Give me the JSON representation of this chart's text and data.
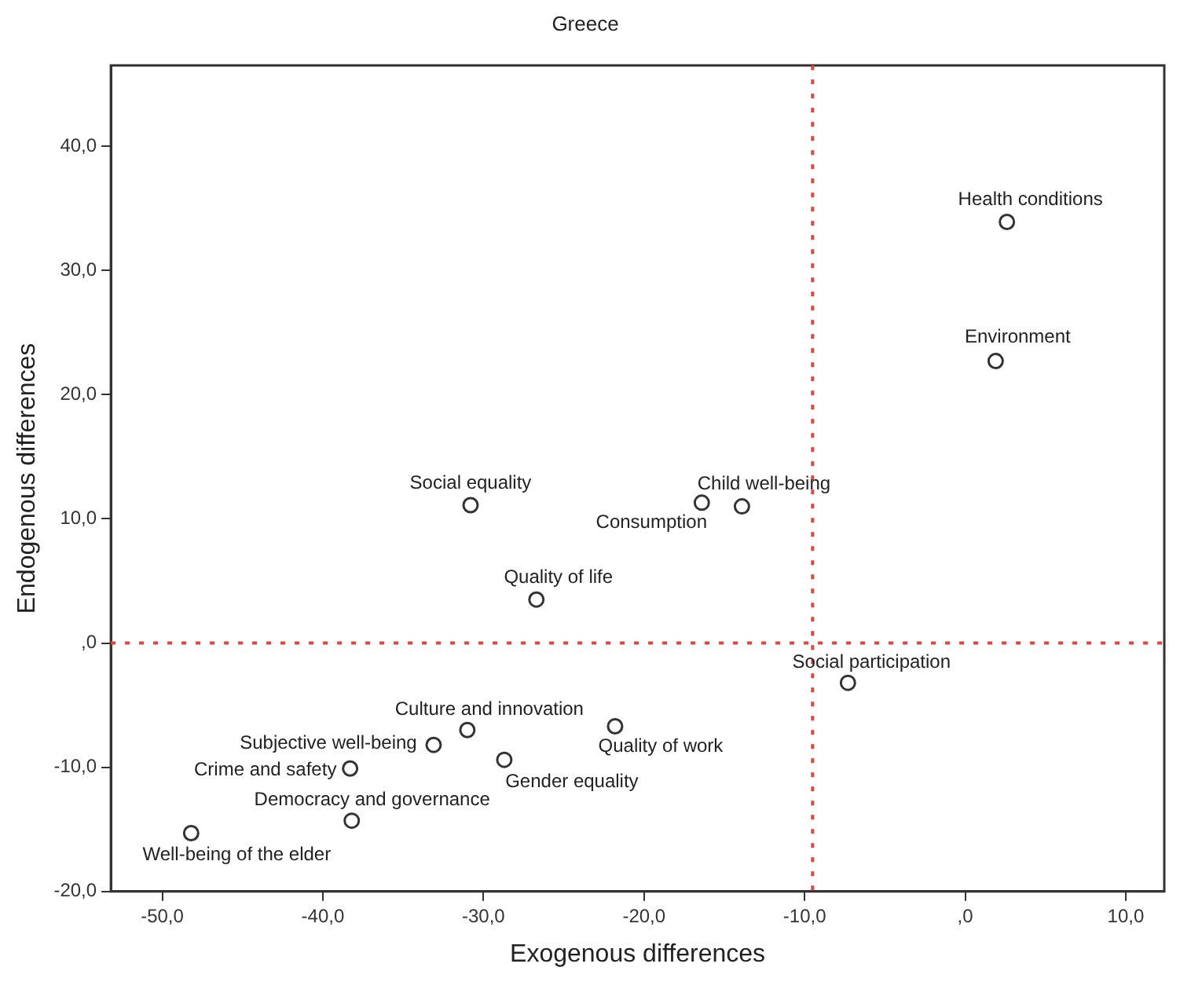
{
  "chart_data": {
    "type": "scatter",
    "title": "Greece",
    "xlabel": "Exogenous differences",
    "ylabel": "Endogenous differences",
    "series": [
      {
        "color": "#333333",
        "x": [
          2.6,
          1.9,
          -30.8,
          -16.4,
          -13.9,
          -26.7,
          -7.3,
          -31.0,
          -21.8,
          -33.1,
          -28.7,
          -38.3,
          -38.2,
          -48.2
        ],
        "values": [
          33.9,
          22.7,
          11.1,
          11.3,
          11.0,
          3.5,
          -3.2,
          -7.0,
          -6.7,
          -8.2,
          -9.4,
          -10.1,
          -14.3,
          -15.3
        ]
      }
    ],
    "annotations": [
      {
        "text": "Health conditions",
        "x": 2.6,
        "y": 33.9
      },
      {
        "text": "Environment",
        "x": 1.9,
        "y": 22.7
      },
      {
        "text": "Social equality",
        "x": -30.8,
        "y": 11.1
      },
      {
        "text": "Consumption",
        "x": -16.4,
        "y": 11.3
      },
      {
        "text": "Child well-being",
        "x": -13.9,
        "y": 11.0
      },
      {
        "text": "Quality of life",
        "x": -26.7,
        "y": 3.5
      },
      {
        "text": "Social participation",
        "x": -7.3,
        "y": -3.2
      },
      {
        "text": "Culture and innovation",
        "x": -31.0,
        "y": -7.0
      },
      {
        "text": "Quality of work",
        "x": -21.8,
        "y": -6.7
      },
      {
        "text": "Subjective well-being",
        "x": -33.1,
        "y": -8.2
      },
      {
        "text": "Gender equality",
        "x": -28.7,
        "y": -9.4
      },
      {
        "text": "Crime and safety",
        "x": -38.3,
        "y": -10.1
      },
      {
        "text": "Democracy and governance",
        "x": -38.2,
        "y": -14.3
      },
      {
        "text": "Well-being of the elder",
        "x": -48.2,
        "y": -15.3
      }
    ],
    "ref_lines": [
      {
        "axis": "x",
        "value": -9.5,
        "color": "#e8413c",
        "line_style": "dotted"
      },
      {
        "axis": "y",
        "value": 0,
        "color": "#e8413c",
        "line_style": "dotted"
      }
    ],
    "xlim": [
      -53.2,
      12.4
    ],
    "ylim": [
      -20,
      46.5
    ],
    "xticks": [
      {
        "value": -50,
        "label": "-50,0"
      },
      {
        "value": -40,
        "label": "-40,0"
      },
      {
        "value": -30,
        "label": "-30,0"
      },
      {
        "value": -20,
        "label": "-20,0"
      },
      {
        "value": -10,
        "label": "-10,0"
      },
      {
        "value": 0,
        "label": ",0"
      },
      {
        "value": 10,
        "label": "10,0"
      }
    ],
    "yticks": [
      {
        "value": -20,
        "label": "-20,0"
      },
      {
        "value": -10,
        "label": "-10,0"
      },
      {
        "value": 0,
        "label": ",0"
      },
      {
        "value": 10,
        "label": "10,0"
      },
      {
        "value": 20,
        "label": "20,0"
      },
      {
        "value": 30,
        "label": "30,0"
      },
      {
        "value": 40,
        "label": "40,0"
      }
    ],
    "grid": false,
    "legend": false,
    "marker": "circle"
  }
}
